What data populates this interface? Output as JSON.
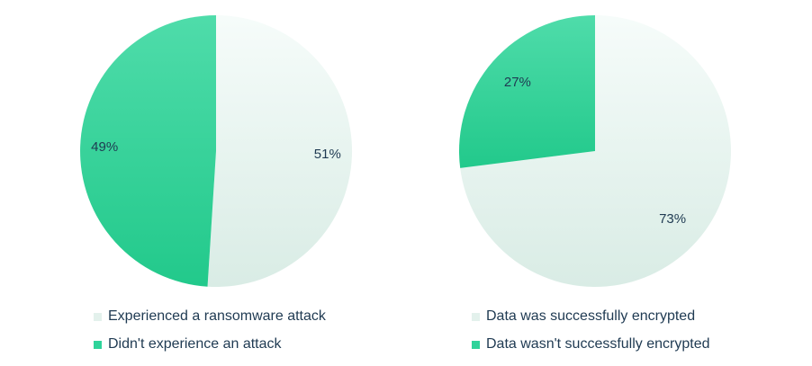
{
  "colors": {
    "light_top": "#f6fcfa",
    "light_bottom": "#d9ece5",
    "green_top": "#4fdcaa",
    "green_bottom": "#22c98b",
    "text": "#1f3a52"
  },
  "chart_data": [
    {
      "type": "pie",
      "title": "",
      "slices": [
        {
          "label": "Experienced a ransomware attack",
          "value": 51,
          "display": "51%",
          "color_key": "light"
        },
        {
          "label": "Didn't experience an attack",
          "value": 49,
          "display": "49%",
          "color_key": "green"
        }
      ],
      "legend_placement": "bottom"
    },
    {
      "type": "pie",
      "title": "",
      "slices": [
        {
          "label": "Data was successfully encrypted",
          "value": 73,
          "display": "73%",
          "color_key": "light"
        },
        {
          "label": "Data wasn't successfully encrypted",
          "value": 27,
          "display": "27%",
          "color_key": "green"
        }
      ],
      "legend_placement": "bottom"
    }
  ],
  "legends": [
    {
      "items": [
        "Experienced a ransomware attack",
        "Didn't experience an attack"
      ]
    },
    {
      "items": [
        "Data was successfully encrypted",
        "Data wasn't successfully encrypted"
      ]
    }
  ]
}
